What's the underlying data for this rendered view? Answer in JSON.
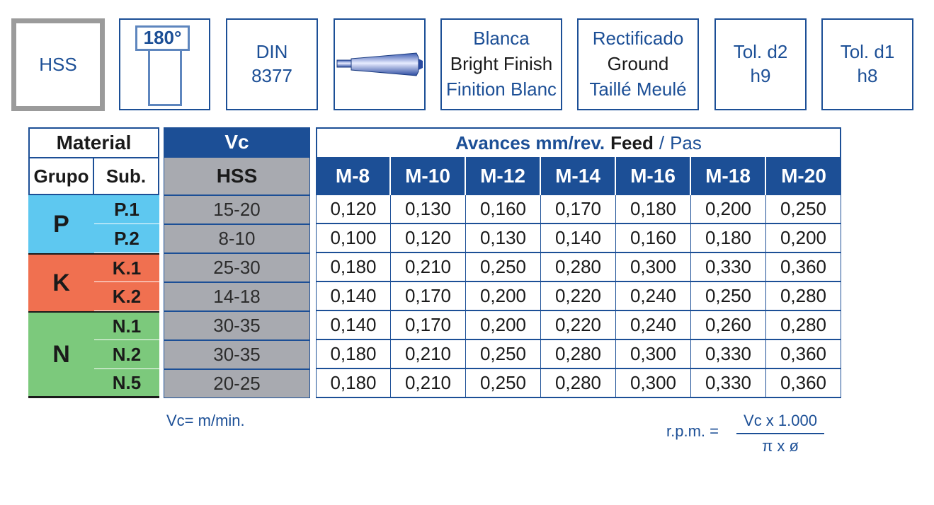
{
  "icons": {
    "material": "HSS",
    "angle": "180°",
    "norm": [
      "DIN",
      "8377"
    ],
    "finish": [
      "Blanca",
      "Bright Finish",
      "Finition Blanc"
    ],
    "grinding": [
      "Rectificado",
      "Ground",
      "Taillé Meulé"
    ],
    "tol_d2": [
      "Tol. d2",
      "h9"
    ],
    "tol_d1": [
      "Tol. d1",
      "h8"
    ]
  },
  "material_table": {
    "title": "Material",
    "col_group": "Grupo",
    "col_sub": "Sub.",
    "groups": [
      {
        "name": "P",
        "color": "#5ec8f0",
        "subs": [
          "P.1",
          "P.2"
        ]
      },
      {
        "name": "K",
        "color": "#f07050",
        "subs": [
          "K.1",
          "K.2"
        ]
      },
      {
        "name": "N",
        "color": "#7cc97c",
        "subs": [
          "N.1",
          "N.2",
          "N.5"
        ]
      }
    ]
  },
  "vc_table": {
    "title": "Vc",
    "sub_title": "HSS",
    "values": [
      "15-20",
      "8-10",
      "25-30",
      "14-18",
      "30-35",
      "30-35",
      "20-25"
    ]
  },
  "feed_table": {
    "title_bold": "Avances mm/rev.",
    "title_mid": "Feed",
    "title_sep": "/",
    "title_end": "Pas",
    "columns": [
      "M-8",
      "M-10",
      "M-12",
      "M-14",
      "M-16",
      "M-18",
      "M-20"
    ],
    "rows": [
      [
        "0,120",
        "0,130",
        "0,160",
        "0,170",
        "0,180",
        "0,200",
        "0,250"
      ],
      [
        "0,100",
        "0,120",
        "0,130",
        "0,140",
        "0,160",
        "0,180",
        "0,200"
      ],
      [
        "0,180",
        "0,210",
        "0,250",
        "0,280",
        "0,300",
        "0,330",
        "0,360"
      ],
      [
        "0,140",
        "0,170",
        "0,200",
        "0,220",
        "0,240",
        "0,250",
        "0,280"
      ],
      [
        "0,140",
        "0,170",
        "0,200",
        "0,220",
        "0,240",
        "0,260",
        "0,280"
      ],
      [
        "0,180",
        "0,210",
        "0,250",
        "0,280",
        "0,300",
        "0,330",
        "0,360"
      ],
      [
        "0,180",
        "0,210",
        "0,250",
        "0,280",
        "0,300",
        "0,330",
        "0,360"
      ]
    ]
  },
  "notes": {
    "vc_unit": "Vc= m/min.",
    "rpm_label": "r.p.m. =",
    "rpm_numerator": "Vc x 1.000",
    "rpm_denominator": "π x ø"
  }
}
